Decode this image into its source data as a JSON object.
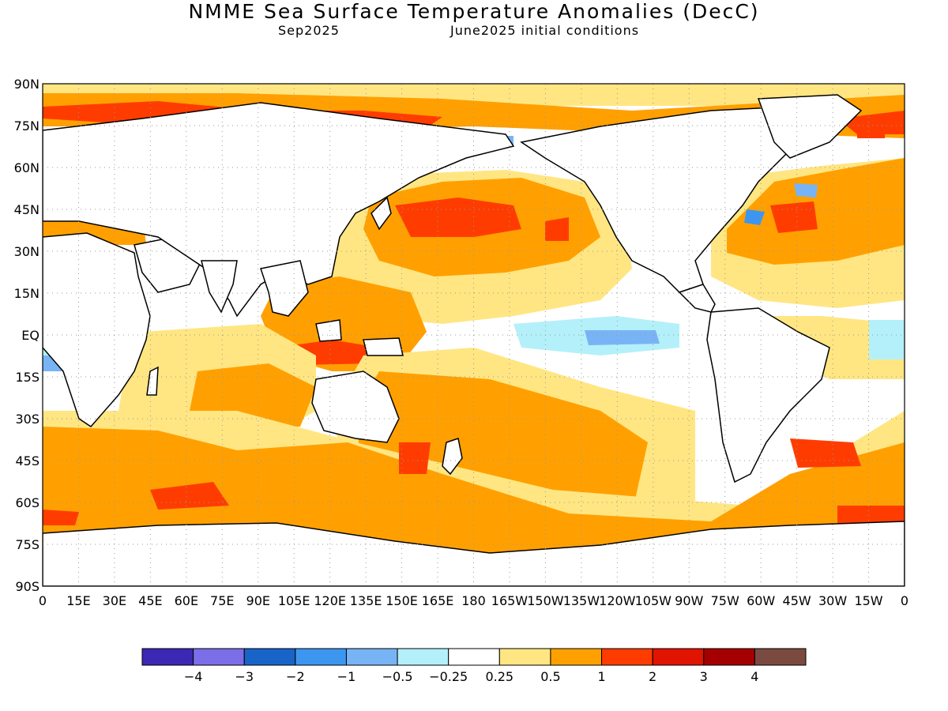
{
  "title": "NMME Sea Surface Temperature Anomalies (DecC)",
  "subtitle_left": "Sep2025",
  "subtitle_right": "June2025 initial conditions",
  "map": {
    "projection": "equirectangular",
    "lon_range": [
      0,
      360
    ],
    "lat_range": [
      -90,
      90
    ],
    "grid": true
  },
  "axes": {
    "lat_ticks": [
      "90N",
      "75N",
      "60N",
      "45N",
      "30N",
      "15N",
      "EQ",
      "15S",
      "30S",
      "45S",
      "60S",
      "75S",
      "90S"
    ],
    "lon_ticks": [
      "0",
      "15E",
      "30E",
      "45E",
      "60E",
      "75E",
      "90E",
      "105E",
      "120E",
      "135E",
      "150E",
      "165E",
      "180",
      "165W",
      "150W",
      "135W",
      "120W",
      "105W",
      "90W",
      "75W",
      "60W",
      "45W",
      "30W",
      "15W",
      "0"
    ]
  },
  "colorbar": {
    "colors": [
      "#3c28b4",
      "#7b6ee8",
      "#1964c8",
      "#3c96f0",
      "#78b4f5",
      "#b4f0fa",
      "#ffffff",
      "#ffe682",
      "#ffa000",
      "#ff3c00",
      "#e11400",
      "#a50000",
      "#7a4a40"
    ],
    "tick_labels": [
      "−4",
      "−3",
      "−2",
      "−1",
      "−0.5",
      "−0.25",
      "0.25",
      "0.5",
      "1",
      "2",
      "3",
      "4"
    ]
  },
  "palette": {
    "land": "#ffffff",
    "coast": "#000000",
    "light": "#ffe682",
    "orange": "#ffa000",
    "red": "#ff3c00",
    "darkred": "#e11400",
    "cyan": "#b4f0fa",
    "lightblue": "#78b4f5",
    "blue": "#3c96f0"
  }
}
